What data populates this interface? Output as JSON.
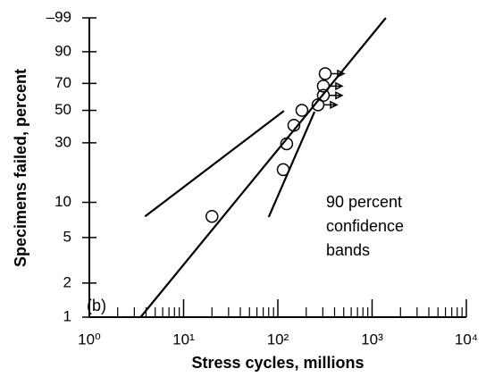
{
  "chart_data": {
    "type": "weibull-probability",
    "ylabel": "Specimens failed, percent",
    "xlabel": "Stress cycles, millions",
    "panel_label": "(b)",
    "annotation": [
      "90 percent",
      "confidence",
      "bands"
    ],
    "xscale": "log",
    "yscale": "weibull",
    "xlim": [
      1,
      10000
    ],
    "ylim": [
      1,
      99
    ],
    "xticks": [
      {
        "value": 1,
        "label": "10⁰"
      },
      {
        "value": 10,
        "label": "10¹"
      },
      {
        "value": 100,
        "label": "10²"
      },
      {
        "value": 1000,
        "label": "10³"
      },
      {
        "value": 10000,
        "label": "10⁴"
      }
    ],
    "xminorticks": [
      2,
      3,
      4,
      5,
      6,
      7,
      8,
      9,
      20,
      30,
      40,
      50,
      60,
      70,
      80,
      90,
      200,
      300,
      400,
      500,
      600,
      700,
      800,
      900,
      2000,
      3000,
      4000,
      5000,
      6000,
      7000,
      8000,
      9000
    ],
    "yticks": [
      1,
      2,
      5,
      10,
      30,
      50,
      70,
      90,
      {
        "value": 99,
        "label": "–99"
      }
    ],
    "series": [
      {
        "kind": "points",
        "color": "#000000",
        "x": [
          20,
          114,
          124,
          148,
          180,
          267,
          304,
          304,
          318
        ],
        "values": [
          7.6,
          18.6,
          29.5,
          40,
          50,
          54,
          61,
          68,
          77
        ],
        "runout": [
          false,
          false,
          false,
          false,
          false,
          true,
          true,
          true,
          true
        ]
      },
      {
        "kind": "line",
        "color": "#000000",
        "x": [
          3.5,
          1400
        ],
        "values": [
          1,
          99
        ]
      },
      {
        "kind": "line",
        "color": "#000000",
        "x": [
          3.9,
          116
        ],
        "values": [
          7.6,
          49.6
        ]
      },
      {
        "kind": "line",
        "color": "#000000",
        "x": [
          80,
          245
        ],
        "values": [
          7.5,
          49
        ]
      }
    ]
  }
}
